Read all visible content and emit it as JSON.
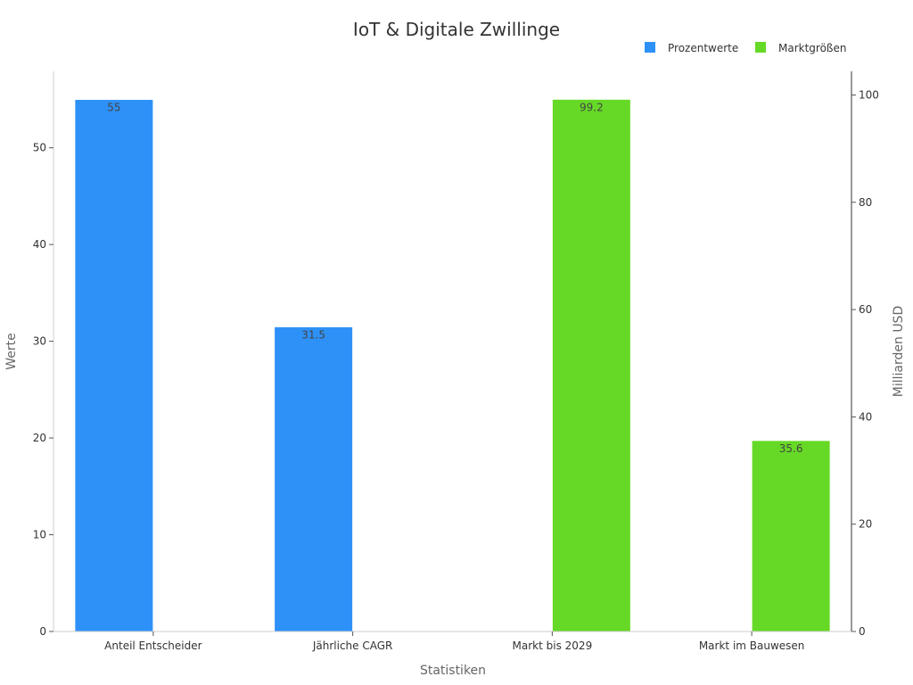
{
  "chart_data": {
    "type": "bar",
    "title": "IoT & Digitale Zwillinge",
    "xlabel": "Statistiken",
    "ylabel": "Werte",
    "y2label": "Milliarden USD",
    "categories": [
      "Anteil Entscheider",
      "Jährliche CAGR",
      "Markt bis 2029",
      "Markt im Bauwesen"
    ],
    "series": [
      {
        "name": "Prozentwerte",
        "axis": "left",
        "color": "#2e91f8",
        "values": [
          55,
          31.5,
          null,
          null
        ],
        "labels": [
          "55",
          "31.5",
          "",
          ""
        ]
      },
      {
        "name": "Marktgrößen",
        "axis": "right",
        "color": "#66d926",
        "values": [
          null,
          null,
          99.2,
          35.6
        ],
        "labels": [
          "",
          "",
          "99.2",
          "35.6"
        ]
      }
    ],
    "ylim": [
      0,
      57.9
    ],
    "y2lim": [
      0,
      104.4
    ],
    "yticks": [
      0,
      10,
      20,
      30,
      40,
      50
    ],
    "y2ticks": [
      0,
      20,
      40,
      60,
      80,
      100
    ],
    "grid": false,
    "legend_position": "top-right"
  }
}
